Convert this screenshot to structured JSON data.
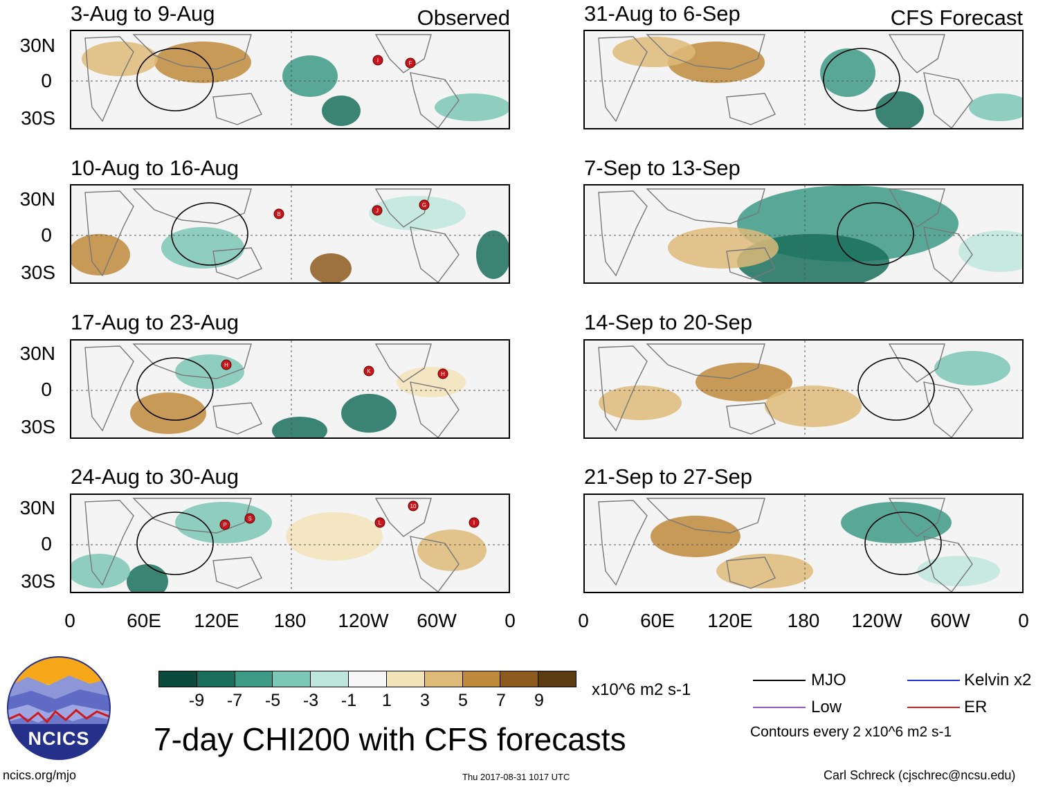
{
  "header": {
    "observed_label": "Observed",
    "forecast_label": "CFS Forecast"
  },
  "panels_observed": [
    {
      "title": "3-Aug to 9-Aug",
      "storms": [
        "I",
        "F"
      ]
    },
    {
      "title": "10-Aug to 16-Aug",
      "storms": [
        "B",
        "J",
        "G"
      ]
    },
    {
      "title": "17-Aug to 23-Aug",
      "storms": [
        "H",
        "K",
        "H"
      ]
    },
    {
      "title": "24-Aug to 30-Aug",
      "storms": [
        "P",
        "S",
        "L",
        "10",
        "I"
      ]
    }
  ],
  "panels_forecast": [
    {
      "title": "31-Aug to 6-Sep"
    },
    {
      "title": "7-Sep to 13-Sep"
    },
    {
      "title": "14-Sep to 20-Sep"
    },
    {
      "title": "21-Sep to 27-Sep"
    }
  ],
  "axes": {
    "lat_labels": [
      "30N",
      "0",
      "30S"
    ],
    "lon_labels": [
      "0",
      "60E",
      "120E",
      "180",
      "120W",
      "60W",
      "0"
    ]
  },
  "colorbar": {
    "unit": "x10^6 m2 s-1",
    "ticks": [
      "-9",
      "-7",
      "-5",
      "-3",
      "-1",
      "1",
      "3",
      "5",
      "7",
      "9"
    ],
    "colors": [
      "#0b4a3c",
      "#1a6e5c",
      "#3d9a86",
      "#7cc7b5",
      "#bfe6dc",
      "#f6f6f6",
      "#f3e3b8",
      "#ddba78",
      "#c08a3c",
      "#8d5b1e",
      "#5c3a12"
    ]
  },
  "legend": {
    "items": [
      {
        "label": "MJO",
        "color": "#000000"
      },
      {
        "label": "Kelvin x2",
        "color": "#1f2fd6"
      },
      {
        "label": "Low",
        "color": "#a24ee0"
      },
      {
        "label": "ER",
        "color": "#e01a1a"
      }
    ],
    "contour_note": "Contours every 2 x10^6 m2 s-1"
  },
  "footer": {
    "main_title": "7-day CHI200 with CFS forecasts",
    "url": "ncics.org/mjo",
    "timestamp": "Thu 2017-08-31 1017 UTC",
    "author": "Carl Schreck (cjschrec@ncsu.edu)",
    "logo_text": "NCICS"
  }
}
